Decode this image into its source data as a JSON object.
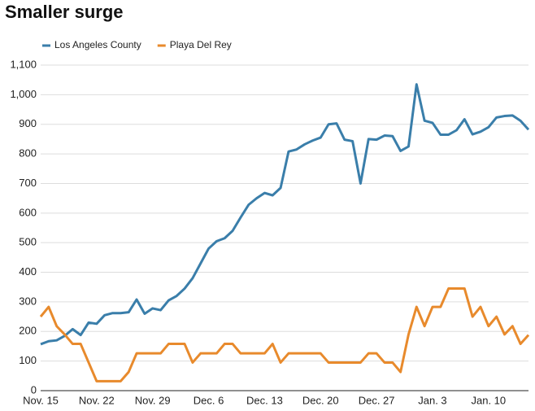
{
  "chart_data": {
    "type": "line",
    "title": "Smaller surge",
    "categories": [
      "Nov. 15",
      null,
      null,
      null,
      null,
      null,
      null,
      "Nov. 22",
      null,
      null,
      null,
      null,
      null,
      null,
      "Nov. 29",
      null,
      null,
      null,
      null,
      null,
      null,
      "Dec. 6",
      null,
      null,
      null,
      null,
      null,
      null,
      "Dec. 13",
      null,
      null,
      null,
      null,
      null,
      null,
      "Dec. 20",
      null,
      null,
      null,
      null,
      null,
      null,
      "Dec. 27",
      null,
      null,
      null,
      null,
      null,
      null,
      "Jan. 3",
      null,
      null,
      null,
      null,
      null,
      null,
      "Jan. 10",
      null,
      null,
      null,
      null,
      null
    ],
    "series": [
      {
        "name": "Los Angeles County",
        "color": "#3a7eaa",
        "values": [
          157,
          167,
          170,
          185,
          208,
          188,
          230,
          226,
          255,
          262,
          262,
          265,
          308,
          260,
          278,
          272,
          305,
          320,
          345,
          380,
          430,
          480,
          505,
          515,
          540,
          585,
          628,
          650,
          668,
          660,
          685,
          808,
          815,
          832,
          845,
          855,
          900,
          903,
          848,
          843,
          700,
          850,
          848,
          862,
          860,
          810,
          825,
          1035,
          912,
          905,
          865,
          865,
          880,
          917,
          866,
          875,
          890,
          923,
          928,
          930,
          912,
          882
        ]
      },
      {
        "name": "Playa Del Rey",
        "color": "#e88a2c",
        "values": [
          250,
          283,
          218,
          190,
          158,
          158,
          95,
          32,
          32,
          32,
          32,
          63,
          126,
          126,
          126,
          126,
          158,
          158,
          158,
          95,
          126,
          126,
          126,
          158,
          158,
          126,
          126,
          126,
          126,
          158,
          95,
          126,
          126,
          126,
          126,
          126,
          95,
          95,
          95,
          95,
          95,
          126,
          126,
          95,
          95,
          63,
          190,
          283,
          218,
          283,
          283,
          345,
          345,
          345,
          250,
          283,
          218,
          250,
          190,
          218,
          158,
          188
        ]
      }
    ],
    "ylim": [
      0,
      1100
    ],
    "yticks": [
      0,
      100,
      200,
      300,
      400,
      500,
      600,
      700,
      800,
      900,
      {
        "value": 1000,
        "label": "1,000"
      },
      {
        "value": 1100,
        "label": "1,100"
      }
    ],
    "grid": true
  }
}
